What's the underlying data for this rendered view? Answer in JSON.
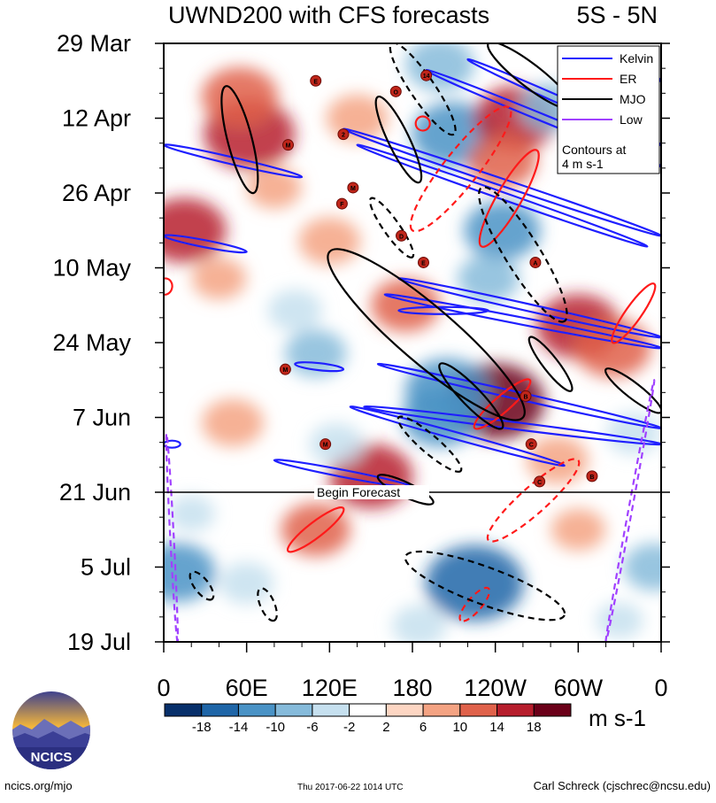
{
  "title": "UWND200 with CFS forecasts",
  "region": "5S - 5N",
  "units": "m s-1",
  "footer": {
    "site": "ncics.org/mjo",
    "timestamp": "Thu 2017-06-22 1014 UTC",
    "author": "Carl Schreck (cjschrec@ncsu.edu)"
  },
  "logo": {
    "text": "NCICS"
  },
  "legend": {
    "entries": [
      {
        "name": "Kelvin",
        "color": "#1f1fff"
      },
      {
        "name": "ER",
        "color": "#ff1a1a"
      },
      {
        "name": "MJO",
        "color": "#000000"
      },
      {
        "name": "Low",
        "color": "#a040ff"
      }
    ],
    "note_line1": "Contours at",
    "note_line2": "4 m s-1"
  },
  "forecast_label": "Begin Forecast",
  "chart_data": {
    "type": "heatmap",
    "title": "UWND200 with CFS forecasts",
    "subtitle": "5S - 5N",
    "x_ticks": [
      "0",
      "60E",
      "120E",
      "180",
      "120W",
      "60W",
      "0"
    ],
    "x_tick_values": [
      0,
      60,
      120,
      180,
      240,
      300,
      360
    ],
    "xlim": [
      0,
      360
    ],
    "y_ticks": [
      "29 Mar",
      "12 Apr",
      "26 Apr",
      "10 May",
      "24 May",
      "7 Jun",
      "21 Jun",
      "5 Jul",
      "19 Jul"
    ],
    "y_tick_values": [
      "2017-03-29",
      "2017-04-12",
      "2017-04-26",
      "2017-05-10",
      "2017-05-24",
      "2017-06-07",
      "2017-06-21",
      "2017-07-05",
      "2017-07-19"
    ],
    "ylim": [
      "2017-03-29",
      "2017-07-19"
    ],
    "forecast_start": "2017-06-21",
    "colorbar": {
      "labels": [
        "-18",
        "-14",
        "-10",
        "-6",
        "-2",
        "2",
        "6",
        "10",
        "14",
        "18"
      ],
      "levels": [
        -18,
        -14,
        -10,
        -6,
        -2,
        2,
        6,
        10,
        14,
        18
      ],
      "colors": [
        "#08306b",
        "#1f66a8",
        "#4a93c6",
        "#86bbdb",
        "#c6e0ef",
        "#ffffff",
        "#fdd6c3",
        "#f4a383",
        "#e0624b",
        "#b71e2d",
        "#6b0019"
      ]
    },
    "anomalies": [
      {
        "lon": 62,
        "date": "2017-04-15",
        "value": 16
      },
      {
        "lon": 55,
        "date": "2017-04-08",
        "value": 12
      },
      {
        "lon": 140,
        "date": "2017-04-12",
        "value": 8
      },
      {
        "lon": 210,
        "date": "2017-04-15",
        "value": -14
      },
      {
        "lon": 200,
        "date": "2017-04-02",
        "value": -10
      },
      {
        "lon": 255,
        "date": "2017-04-12",
        "value": 14
      },
      {
        "lon": 245,
        "date": "2017-04-20",
        "value": 10
      },
      {
        "lon": 245,
        "date": "2017-05-03",
        "value": -12
      },
      {
        "lon": 15,
        "date": "2017-05-03",
        "value": 14
      },
      {
        "lon": 120,
        "date": "2017-05-05",
        "value": 8
      },
      {
        "lon": 80,
        "date": "2017-04-25",
        "value": 6
      },
      {
        "lon": 175,
        "date": "2017-05-17",
        "value": 10
      },
      {
        "lon": 235,
        "date": "2017-05-12",
        "value": -8
      },
      {
        "lon": 300,
        "date": "2017-05-21",
        "value": 14
      },
      {
        "lon": 325,
        "date": "2017-05-25",
        "value": 12
      },
      {
        "lon": 40,
        "date": "2017-05-12",
        "value": 6
      },
      {
        "lon": 110,
        "date": "2017-05-26",
        "value": -8
      },
      {
        "lon": 240,
        "date": "2017-06-04",
        "value": 18
      },
      {
        "lon": 205,
        "date": "2017-06-02",
        "value": -14
      },
      {
        "lon": 200,
        "date": "2017-06-07",
        "value": -12
      },
      {
        "lon": 150,
        "date": "2017-06-18",
        "value": 14
      },
      {
        "lon": 50,
        "date": "2017-06-08",
        "value": 8
      },
      {
        "lon": 125,
        "date": "2017-06-12",
        "value": -6
      },
      {
        "lon": 285,
        "date": "2017-06-15",
        "value": 8
      },
      {
        "lon": 110,
        "date": "2017-06-28",
        "value": 10
      },
      {
        "lon": 225,
        "date": "2017-07-08",
        "value": -18
      },
      {
        "lon": 10,
        "date": "2017-07-06",
        "value": -12
      },
      {
        "lon": 60,
        "date": "2017-07-08",
        "value": -6
      },
      {
        "lon": 355,
        "date": "2017-07-05",
        "value": -8
      },
      {
        "lon": 300,
        "date": "2017-06-28",
        "value": 6
      },
      {
        "lon": 185,
        "date": "2017-07-16",
        "value": -6
      },
      {
        "lon": 330,
        "date": "2017-07-15",
        "value": -4
      },
      {
        "lon": 20,
        "date": "2017-06-25",
        "value": -4
      },
      {
        "lon": 280,
        "date": "2017-04-10",
        "value": -8
      },
      {
        "lon": 95,
        "date": "2017-05-18",
        "value": -6
      },
      {
        "lon": 340,
        "date": "2017-06-10",
        "value": -6
      }
    ],
    "series": [
      {
        "name": "Kelvin",
        "color": "#1f1fff",
        "style": "solid",
        "segments": [
          {
            "from": [
              0,
              "2017-04-17"
            ],
            "to": [
              100,
              "2017-04-23"
            ]
          },
          {
            "from": [
              315,
              "2017-03-31"
            ],
            "to": [
              360,
              "2017-04-05"
            ]
          },
          {
            "from": [
              220,
              "2017-04-01"
            ],
            "to": [
              360,
              "2017-04-17"
            ]
          },
          {
            "from": [
              190,
              "2017-04-03"
            ],
            "to": [
              360,
              "2017-04-21"
            ]
          },
          {
            "from": [
              130,
              "2017-04-14"
            ],
            "to": [
              360,
              "2017-05-04"
            ]
          },
          {
            "from": [
              140,
              "2017-04-17"
            ],
            "to": [
              350,
              "2017-05-06"
            ]
          },
          {
            "from": [
              0,
              "2017-05-04"
            ],
            "to": [
              60,
              "2017-05-07"
            ]
          },
          {
            "from": [
              170,
              "2017-05-12"
            ],
            "to": [
              360,
              "2017-05-23"
            ]
          },
          {
            "from": [
              160,
              "2017-05-15"
            ],
            "to": [
              360,
              "2017-05-25"
            ]
          },
          {
            "from": [
              170,
              "2017-05-18"
            ],
            "to": [
              235,
              "2017-05-18"
            ]
          },
          {
            "from": [
              155,
              "2017-05-28"
            ],
            "to": [
              360,
              "2017-06-09"
            ]
          },
          {
            "from": [
              95,
              "2017-05-28"
            ],
            "to": [
              130,
              "2017-05-29"
            ]
          },
          {
            "from": [
              135,
              "2017-06-05"
            ],
            "to": [
              290,
              "2017-06-16"
            ]
          },
          {
            "from": [
              145,
              "2017-06-05"
            ],
            "to": [
              360,
              "2017-06-12"
            ]
          },
          {
            "from": [
              80,
              "2017-06-15"
            ],
            "to": [
              180,
              "2017-06-20"
            ]
          },
          {
            "from": [
              0,
              "2017-06-12"
            ],
            "to": [
              12,
              "2017-06-12"
            ]
          }
        ]
      },
      {
        "name": "ER",
        "color": "#ff1a1a",
        "style": "solid",
        "segments": [
          {
            "from": [
              270,
              "2017-04-18"
            ],
            "to": [
              230,
              "2017-05-06"
            ]
          },
          {
            "from": [
              185,
              "2017-04-14"
            ],
            "to": [
              190,
              "2017-04-12"
            ]
          },
          {
            "from": [
              265,
              "2017-05-31"
            ],
            "to": [
              225,
              "2017-06-09"
            ]
          },
          {
            "from": [
              355,
              "2017-05-13"
            ],
            "to": [
              325,
              "2017-05-24"
            ]
          },
          {
            "from": [
              0,
              "2017-05-15"
            ],
            "to": [
              2,
              "2017-05-12"
            ]
          },
          {
            "from": [
              130,
              "2017-06-24"
            ],
            "to": [
              90,
              "2017-07-02"
            ]
          }
        ]
      },
      {
        "name": "ER forecast",
        "color": "#ff1a1a",
        "style": "dashed",
        "segments": [
          {
            "from": [
              250,
              "2017-04-10"
            ],
            "to": [
              180,
              "2017-05-03"
            ]
          },
          {
            "from": [
              300,
              "2017-06-15"
            ],
            "to": [
              235,
              "2017-06-30"
            ]
          },
          {
            "from": [
              235,
              "2017-07-09"
            ],
            "to": [
              215,
              "2017-07-15"
            ]
          }
        ]
      },
      {
        "name": "MJO",
        "color": "#000000",
        "style": "solid",
        "segments": [
          {
            "from": [
              45,
              "2017-04-06"
            ],
            "to": [
              65,
              "2017-04-26"
            ]
          },
          {
            "from": [
              155,
              "2017-04-08"
            ],
            "to": [
              185,
              "2017-04-24"
            ]
          },
          {
            "from": [
              235,
              "2017-03-29"
            ],
            "to": [
              295,
              "2017-04-10"
            ]
          },
          {
            "from": [
              120,
              "2017-05-07"
            ],
            "to": [
              260,
              "2017-06-07"
            ]
          },
          {
            "from": [
              200,
              "2017-05-28"
            ],
            "to": [
              245,
              "2017-06-09"
            ]
          },
          {
            "from": [
              265,
              "2017-05-23"
            ],
            "to": [
              295,
              "2017-06-02"
            ]
          },
          {
            "from": [
              320,
              "2017-05-29"
            ],
            "to": [
              360,
              "2017-06-06"
            ]
          },
          {
            "from": [
              155,
              "2017-06-18"
            ],
            "to": [
              195,
              "2017-06-23"
            ]
          }
        ]
      },
      {
        "name": "MJO forecast",
        "color": "#000000",
        "style": "dashed",
        "segments": [
          {
            "from": [
              150,
              "2017-04-27"
            ],
            "to": [
              180,
              "2017-05-08"
            ]
          },
          {
            "from": [
              230,
              "2017-04-25"
            ],
            "to": [
              290,
              "2017-05-20"
            ]
          },
          {
            "from": [
              165,
              "2017-03-29"
            ],
            "to": [
              210,
              "2017-04-15"
            ]
          },
          {
            "from": [
              170,
              "2017-06-07"
            ],
            "to": [
              215,
              "2017-06-17"
            ]
          },
          {
            "from": [
              175,
              "2017-07-03"
            ],
            "to": [
              290,
              "2017-07-14"
            ]
          },
          {
            "from": [
              20,
              "2017-07-06"
            ],
            "to": [
              35,
              "2017-07-11"
            ]
          },
          {
            "from": [
              70,
              "2017-07-09"
            ],
            "to": [
              80,
              "2017-07-15"
            ]
          }
        ]
      },
      {
        "name": "Low",
        "color": "#a040ff",
        "style": "dashed",
        "segments": [
          {
            "from": [
              2,
              "2017-06-10"
            ],
            "to": [
              10,
              "2017-07-19"
            ]
          },
          {
            "from": [
              355,
              "2017-05-31"
            ],
            "to": [
              320,
              "2017-07-19"
            ]
          }
        ]
      }
    ],
    "storms": [
      {
        "label": "E",
        "lon": 110,
        "date": "2017-04-05"
      },
      {
        "label": "O",
        "lon": 168,
        "date": "2017-04-07"
      },
      {
        "label": "14",
        "lon": 190,
        "date": "2017-04-04"
      },
      {
        "label": "M",
        "lon": 90,
        "date": "2017-04-17"
      },
      {
        "label": "2",
        "lon": 130,
        "date": "2017-04-15"
      },
      {
        "label": "M",
        "lon": 137,
        "date": "2017-04-25"
      },
      {
        "label": "F",
        "lon": 129,
        "date": "2017-04-28"
      },
      {
        "label": "D",
        "lon": 172,
        "date": "2017-05-04"
      },
      {
        "label": "E",
        "lon": 188,
        "date": "2017-05-09"
      },
      {
        "label": "A",
        "lon": 269,
        "date": "2017-05-09"
      },
      {
        "label": "M",
        "lon": 88,
        "date": "2017-05-29"
      },
      {
        "label": "B",
        "lon": 262,
        "date": "2017-06-03"
      },
      {
        "label": "M",
        "lon": 117,
        "date": "2017-06-12"
      },
      {
        "label": "C",
        "lon": 266,
        "date": "2017-06-12"
      },
      {
        "label": "C",
        "lon": 272,
        "date": "2017-06-19"
      },
      {
        "label": "B",
        "lon": 310,
        "date": "2017-06-18"
      }
    ]
  }
}
